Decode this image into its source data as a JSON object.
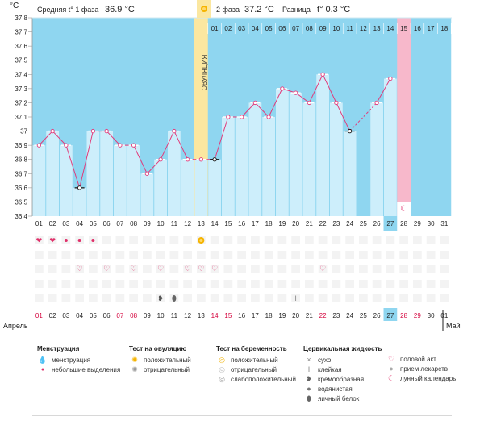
{
  "header": {
    "phase1_label": "Средняя t° 1 фаза",
    "phase1_value": "36.9 °C",
    "phase2_label": "2 фаза",
    "phase2_value": "37.2 °C",
    "diff_label": "Разница",
    "diff_value": "t° 0.3 °C"
  },
  "unit_label": "°C",
  "ovulation_label": "ОВУЛЯЦИЯ",
  "months": {
    "start": "Апрель",
    "end": "Май"
  },
  "colors": {
    "line": "#e23a7a",
    "bar": "#cdeefb",
    "bar_edge": "#ffffff",
    "bg": "#8fd6f0",
    "ovulation": "#fbe7a0",
    "period": "#f7b8cb",
    "today": "#8fd6f0",
    "red_day": "#d4003b",
    "grid_dot": "#e8e8e8"
  },
  "chart_data": {
    "type": "line",
    "ylim": [
      36.4,
      37.8
    ],
    "y_ticks": [
      "37.8",
      "37.7",
      "37.6",
      "37.5",
      "37.4",
      "37.3",
      "37.2",
      "37.1",
      "37",
      "36.9",
      "36.8",
      "36.7",
      "36.6",
      "36.5",
      "36.4"
    ],
    "cycle_day_labels_top": [
      "01",
      "02",
      "03",
      "04",
      "05",
      "06",
      "07",
      "08",
      "09",
      "10",
      "11",
      "12",
      "13",
      "14",
      "15",
      "16",
      "17",
      "18"
    ],
    "calendar_dates_axis": [
      "01",
      "02",
      "03",
      "04",
      "05",
      "06",
      "07",
      "08",
      "09",
      "10",
      "11",
      "12",
      "13",
      "14",
      "15",
      "16",
      "17",
      "18",
      "19",
      "20",
      "21",
      "22",
      "23",
      "24",
      "25",
      "26",
      "27",
      "28",
      "29",
      "30",
      "31"
    ],
    "calendar_dates_bottom": [
      "01",
      "02",
      "03",
      "04",
      "05",
      "06",
      "07",
      "08",
      "09",
      "10",
      "11",
      "12",
      "13",
      "14",
      "15",
      "16",
      "17",
      "18",
      "19",
      "20",
      "21",
      "22",
      "23",
      "24",
      "25",
      "26",
      "27",
      "28",
      "29",
      "30",
      "01"
    ],
    "bottom_red_indices": [
      0,
      6,
      7,
      13,
      14,
      21,
      27,
      28
    ],
    "today_index": 26,
    "ovulation_index": 12,
    "period_index": 27,
    "temperatures": [
      36.9,
      37.0,
      36.9,
      36.6,
      37.0,
      37.0,
      36.9,
      36.9,
      36.7,
      36.8,
      37.0,
      36.8,
      36.8,
      36.8,
      37.1,
      37.1,
      37.2,
      37.1,
      37.3,
      37.27,
      37.2,
      37.4,
      37.2,
      37.0,
      null,
      37.2,
      37.37
    ],
    "black_markers": [
      3,
      13,
      23
    ],
    "dashed_segment": [
      23,
      25
    ]
  },
  "symbols": {
    "menstruation_big": [
      0,
      1
    ],
    "menstruation_small": [
      2,
      3,
      4
    ],
    "ovulation_test": [
      12
    ],
    "intercourse": [
      3,
      5,
      7,
      9,
      11,
      12,
      13,
      21
    ],
    "creamy": [
      9
    ],
    "egg_white": [
      10
    ],
    "sticky": [
      19
    ],
    "moon": [
      27
    ]
  },
  "legend": {
    "menstruation": {
      "title": "Менструация",
      "items": [
        "менструация",
        "небольшие выделения"
      ]
    },
    "ovulation_test": {
      "title": "Тест на овуляцию",
      "items": [
        "положительный",
        "отрицательный"
      ]
    },
    "pregnancy_test": {
      "title": "Тест на беременность",
      "items": [
        "положительный",
        "отрицательный",
        "слабоположительный"
      ]
    },
    "cervical": {
      "title": "Цервикальная жидкость",
      "items": [
        "сухо",
        "клейкая",
        "кремообразная",
        "водянистая",
        "яичный белок"
      ]
    },
    "other": {
      "items": [
        "половой акт",
        "прием лекарств",
        "лунный календарь"
      ]
    }
  }
}
